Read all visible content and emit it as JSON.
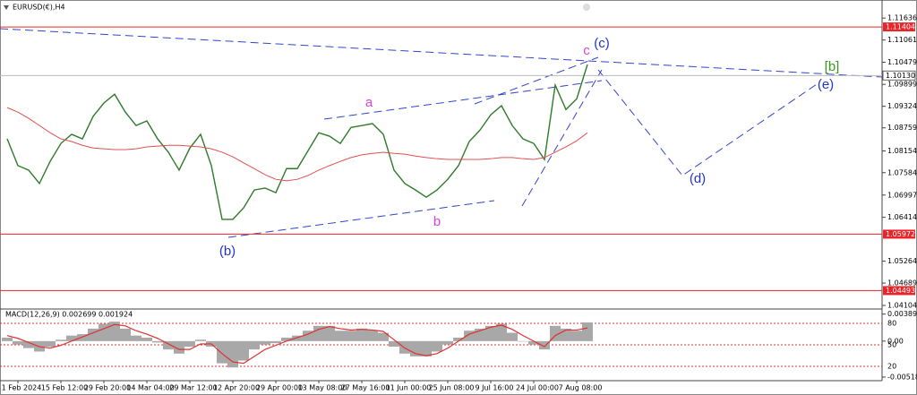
{
  "chart_data": [
    {
      "type": "line",
      "title": "EURUSD(€),H4",
      "categories": [
        null,
        "1 Feb 2024",
        null,
        null,
        null,
        "15 Feb 12:00",
        null,
        null,
        null,
        "29 Feb 20:00",
        null,
        null,
        null,
        "14 Mar 04:00",
        null,
        null,
        null,
        "29 Mar 12:00",
        null,
        null,
        null,
        "12 Apr 20:00",
        null,
        null,
        null,
        "29 Apr 00:00",
        null,
        null,
        null,
        "13 May 08:00",
        null,
        null,
        null,
        "27 May 16:00",
        null,
        null,
        null,
        "11 Jun 00:00",
        null,
        null,
        null,
        "25 Jun 08:00",
        null,
        null,
        null,
        "9 Jul 16:00",
        null,
        null,
        null,
        "24 Jul 00:00",
        null,
        null,
        null,
        "7 Aug 08:00",
        null
      ],
      "series": [
        {
          "color": "#2f7a2a",
          "values": [
            1.0847,
            1.0777,
            1.0765,
            1.073,
            1.0788,
            1.0835,
            1.0859,
            1.0847,
            1.0906,
            1.0941,
            1.0964,
            1.0917,
            1.0882,
            1.0894,
            1.0847,
            1.0812,
            1.0765,
            1.0823,
            1.0859,
            1.0777,
            1.0636,
            1.0636,
            1.0666,
            1.0713,
            1.0718,
            1.0706,
            1.0769,
            1.0769,
            1.0816,
            1.0863,
            1.0854,
            1.0835,
            1.0877,
            1.0882,
            1.0887,
            1.0859,
            1.0765,
            1.073,
            1.0713,
            1.0694,
            1.0713,
            1.0741,
            1.0777,
            1.084,
            1.087,
            1.091,
            1.0934,
            1.0882,
            1.0847,
            1.0835,
            1.0793,
            1.0988,
            1.0924,
            1.0952,
            1.1042
          ]
        },
        {
          "color": "#e05050",
          "values": [
            1.0929,
            1.0917,
            1.0901,
            1.0882,
            1.0863,
            1.0847,
            1.084,
            1.083,
            1.0823,
            1.0821,
            1.0819,
            1.0819,
            1.0821,
            1.0826,
            1.0828,
            1.083,
            1.083,
            1.0828,
            1.0826,
            1.0821,
            1.0812,
            1.08,
            1.0784,
            1.0769,
            1.0753,
            1.0741,
            1.0737,
            1.0741,
            1.0751,
            1.0765,
            1.0777,
            1.0788,
            1.0798,
            1.0805,
            1.0809,
            1.0812,
            1.0809,
            1.0807,
            1.0802,
            1.0798,
            1.0795,
            1.0793,
            1.0793,
            1.0793,
            1.0793,
            1.0795,
            1.0798,
            1.0798,
            1.0795,
            1.0793,
            1.0798,
            1.0812,
            1.0826,
            1.0842,
            1.0863
          ]
        }
      ],
      "ylim": [
        1.0401,
        1.1211
      ],
      "yticks": [
        1.11636,
        1.11061,
        1.10479,
        1.09899,
        1.09324,
        1.08759,
        1.08154,
        1.07584,
        1.06997,
        1.06414,
        1.05264,
        1.04689,
        1.04104
      ],
      "hlines": [
        {
          "value": 1.11404,
          "color": "#e8262a"
        },
        {
          "value": 1.05972,
          "color": "#e8262a"
        },
        {
          "value": 1.04493,
          "color": "#e8262a"
        }
      ],
      "current_price": {
        "value": 1.1013,
        "label": "1.10130"
      },
      "annotations": [
        {
          "text": "a",
          "color": "#e040e0"
        },
        {
          "text": "b",
          "color": "#e040e0"
        },
        {
          "text": "(b)",
          "color": "#2233cc"
        },
        {
          "text": "c",
          "color": "#e040e0"
        },
        {
          "text": "(c)",
          "color": "#2233cc"
        },
        {
          "text": "[b]",
          "color": "#3a9a20"
        },
        {
          "text": "(e)",
          "color": "#2233cc"
        },
        {
          "text": "(d)",
          "color": "#2233cc"
        }
      ]
    },
    {
      "type": "bar",
      "title": "MACD(12,26,9) 0.002699 0.001924",
      "series": [
        {
          "type": "bar",
          "color": "#a8a8a8",
          "values": [
            0.0005,
            -0.0005,
            -0.001,
            -0.0015,
            -0.0008,
            0.0002,
            0.0008,
            0.001,
            0.0018,
            0.0025,
            0.0028,
            0.0018,
            0.0008,
            0.0005,
            -0.0002,
            -0.0012,
            -0.0018,
            -0.0008,
            0.0002,
            -0.0008,
            -0.0032,
            -0.0038,
            -0.0028,
            -0.0012,
            -0.0005,
            -0.0003,
            0.0005,
            0.0008,
            0.0015,
            0.0022,
            0.0022,
            0.0015,
            0.0015,
            0.0018,
            0.0016,
            0.0012,
            -0.0008,
            -0.0018,
            -0.0022,
            -0.0022,
            -0.0015,
            -0.0005,
            0.0005,
            0.0015,
            0.0018,
            0.0022,
            0.0025,
            0.0012,
            0.0,
            -0.0005,
            -0.0012,
            0.0022,
            0.0018,
            0.0015,
            0.0027
          ]
        },
        {
          "type": "line",
          "color": "#e03030",
          "values": [
            0.0008,
            0.0004,
            -0.0002,
            -0.0008,
            -0.001,
            -0.0006,
            0.0,
            0.0006,
            0.0012,
            0.0018,
            0.0024,
            0.0022,
            0.0015,
            0.001,
            0.0004,
            -0.0004,
            -0.0012,
            -0.0012,
            -0.0004,
            -0.0004,
            -0.0018,
            -0.003,
            -0.0032,
            -0.0022,
            -0.0012,
            -0.0006,
            0.0,
            0.0005,
            0.001,
            0.0017,
            0.0021,
            0.0018,
            0.0016,
            0.0017,
            0.0016,
            0.0014,
            0.0002,
            -0.001,
            -0.0018,
            -0.0021,
            -0.0018,
            -0.001,
            0.0,
            0.001,
            0.0015,
            0.002,
            0.0023,
            0.0017,
            0.0008,
            0.0,
            -0.0008,
            0.0008,
            0.0016,
            0.0016,
            0.0019
          ]
        }
      ],
      "ylim": [
        -0.0057,
        0.0045
      ],
      "yticks": [
        0.003894,
        {
          "value": 0,
          "label": "0.00"
        },
        -0.005182
      ],
      "y2lim": [
        0,
        100
      ],
      "y2ticks": [
        80,
        50,
        20
      ]
    }
  ]
}
